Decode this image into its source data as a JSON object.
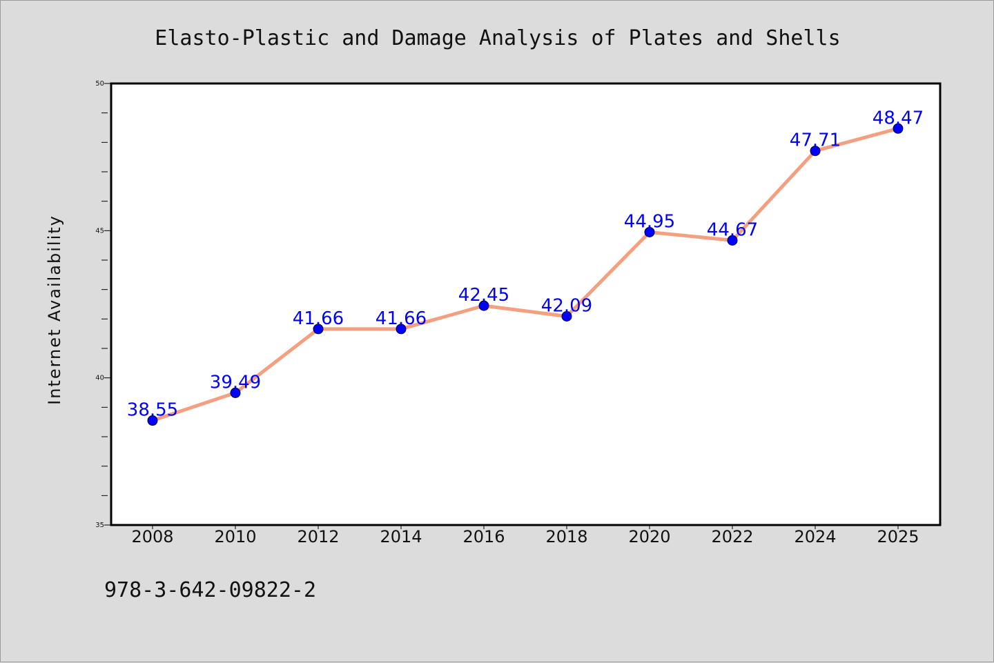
{
  "chart_data": {
    "type": "line",
    "title": "Elasto-Plastic and Damage Analysis of Plates and Shells",
    "xlabel": "",
    "ylabel": "Internet Availability",
    "categories": [
      "2008",
      "2010",
      "2012",
      "2014",
      "2016",
      "2018",
      "2020",
      "2022",
      "2024",
      "2025"
    ],
    "series": [
      {
        "values": [
          38.55,
          39.49,
          41.66,
          41.66,
          42.45,
          42.09,
          44.95,
          44.67,
          47.71,
          48.47
        ],
        "labels": [
          "38.55",
          "39.49",
          "41.66",
          "41.66",
          "42.45",
          "42.09",
          "44.95",
          "44.67",
          "47.71",
          "48.47"
        ]
      }
    ],
    "ylim": [
      35,
      50
    ],
    "yticks": [
      "35",
      "40",
      "45",
      "50"
    ],
    "grid": false,
    "legend": "none",
    "colors": {
      "line": "#f4a080",
      "marker": "#0000ff",
      "data_label": "#0000ff",
      "background": "#dcdcdc",
      "plot_background": "#ffffff"
    }
  },
  "footer": {
    "isbn": "978-3-642-09822-2"
  }
}
